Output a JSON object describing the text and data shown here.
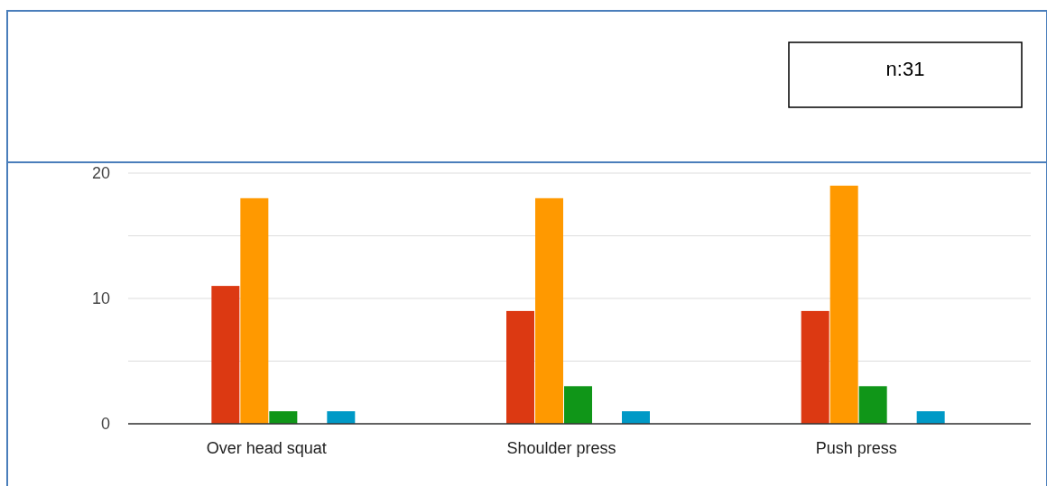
{
  "chart_data": {
    "type": "bar",
    "categories": [
      "Over head squat",
      "Shoulder press",
      "Push press"
    ],
    "series": [
      {
        "color": "#3366cc",
        "values": [
          0,
          0,
          0
        ]
      },
      {
        "color": "#dc3912",
        "values": [
          11,
          9,
          9
        ]
      },
      {
        "color": "#ff9900",
        "values": [
          18,
          18,
          19
        ]
      },
      {
        "color": "#109618",
        "values": [
          1,
          3,
          3
        ]
      },
      {
        "color": "#990099",
        "values": [
          0,
          0,
          0
        ]
      },
      {
        "color": "#0099c6",
        "values": [
          1,
          1,
          1
        ]
      }
    ],
    "ylim": [
      0,
      20
    ],
    "yticks": [
      0,
      {
        "value": 5,
        "label": null
      },
      10,
      {
        "value": 15,
        "label": null
      },
      20
    ],
    "grid": "y",
    "annotations": [
      "n:31"
    ]
  }
}
